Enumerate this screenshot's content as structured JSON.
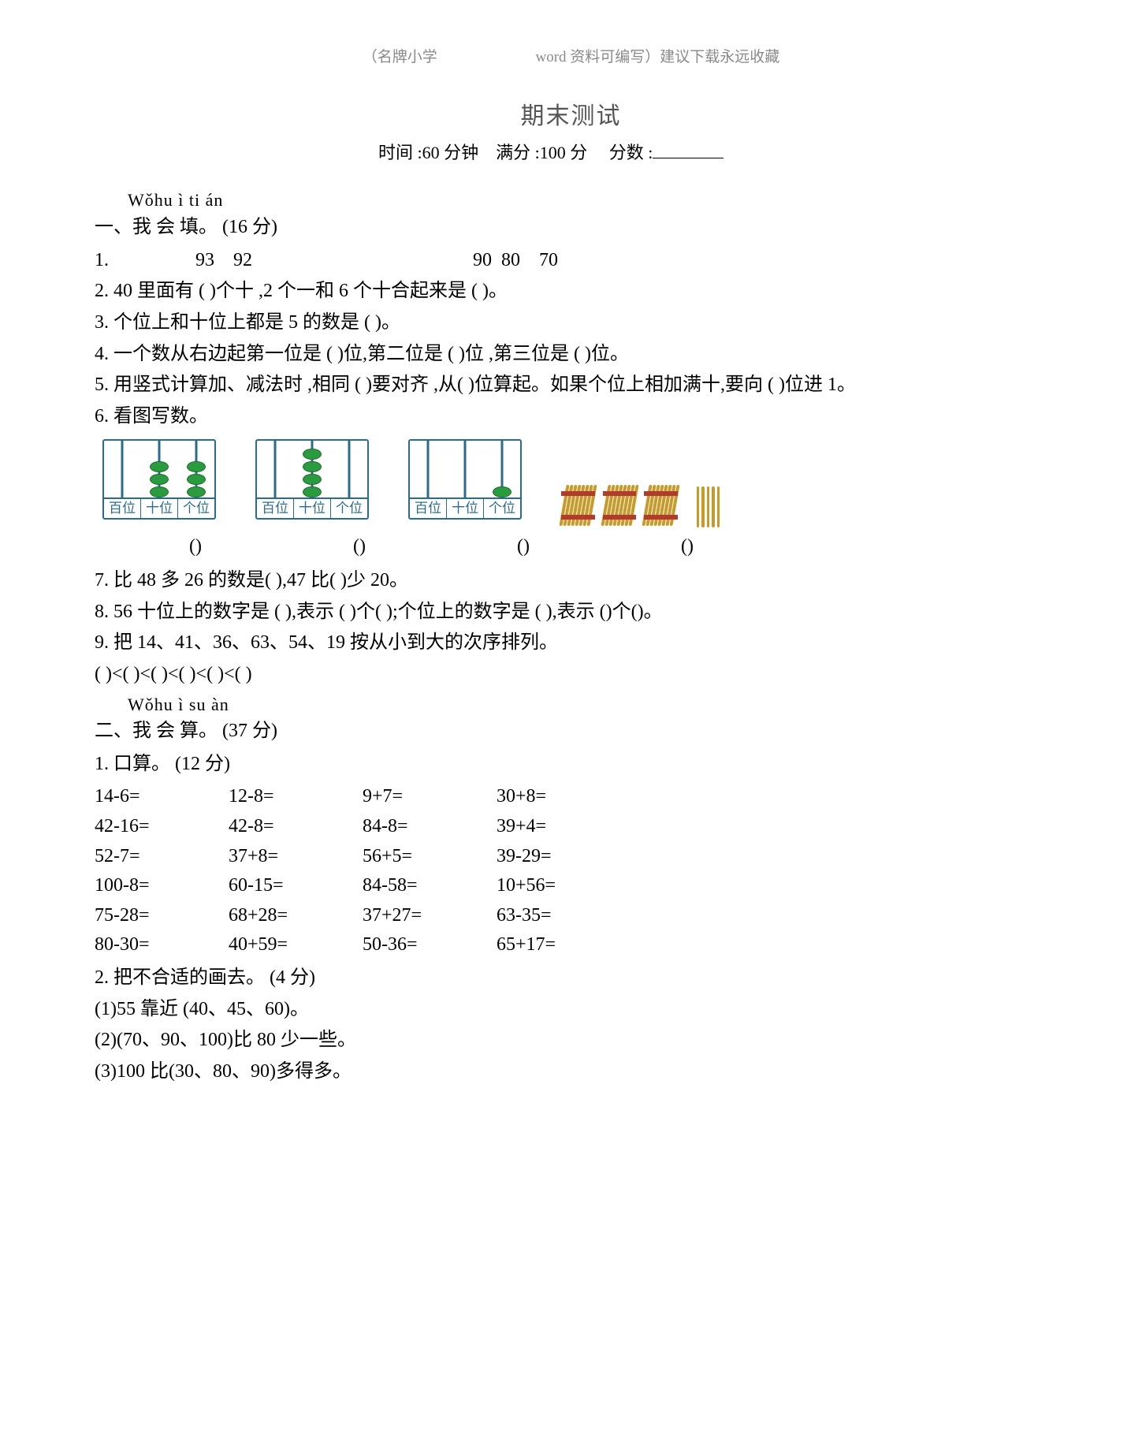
{
  "header": {
    "left": "（名牌小学",
    "right": "word 资料可编写）建议下载永远收藏"
  },
  "title": "期末测试",
  "meta": {
    "time_label": "时间 :60 分钟",
    "full_label": "满分 :100 分",
    "score_label": "分数 :"
  },
  "sec1": {
    "pinyin": "Wǒhu ì ti     án",
    "head": "一、我  会  填。 (16 分)",
    "q1_label": "1.",
    "q1_seq_a": "93    92",
    "q1_seq_b": "90  80    70",
    "q2": "2. 40  里面有 (          )个十 ,2 个一和 6 个十合起来是 (       )。",
    "q3": "3.   个位上和十位上都是  5 的数是 (          )。",
    "q4": "4.   一个数从右边起第一位是  (          )位,第二位是 (      )位 ,第三位是 (        )位。",
    "q5": "5.   用竖式计算加、减法时  ,相同 (        )要对齐 ,从(       )位算起。如果个位上相加满十,要向 (       )位进 1。",
    "q6": "6.   看图写数。",
    "abacus_labels": [
      "百位",
      "十位",
      "个位"
    ],
    "abacus_colors": {
      "frame": "#2b6c8e",
      "bead": "#2b9b3f",
      "bead_border": "#1f6b2b"
    },
    "abacus_values": [
      {
        "h": 0,
        "t": 3,
        "o": 3
      },
      {
        "h": 0,
        "t": 4,
        "o": 0
      },
      {
        "h": 0,
        "t": 0,
        "o": 1
      }
    ],
    "sticks_colors": {
      "stick": "#c79a2a",
      "band": "#b53a2e"
    },
    "paren": "()",
    "q7": "7.    比 48 多 26 的数是(      ),47 比(         )少 20。",
    "q8": "8.   56 十位上的数字是 (       ),表示 (       )个(          );个位上的数字是 (       ),表示 ()个()。",
    "q9": "9.   把 14、41、36、63、54、19 按从小到大的次序排列。",
    "q9_ans": "(       )<(       )<(       )<(       )<(       )<(        )"
  },
  "sec2": {
    "pinyin": "Wǒhu ì su àn",
    "head": "二、我  会  算。 (37 分)",
    "sub1": "1.   口算。 (12 分)",
    "calc": [
      [
        "14-6=",
        "12-8=",
        "9+7=",
        "30+8="
      ],
      [
        "42-16=",
        "42-8=",
        "84-8=",
        "39+4="
      ],
      [
        "52-7=",
        "37+8=",
        "56+5=",
        "39-29="
      ],
      [
        "100-8=",
        "60-15=",
        "84-58=",
        "10+56="
      ],
      [
        "75-28=",
        "68+28=",
        "37+27=",
        "63-35="
      ],
      [
        "80-30=",
        "40+59=",
        "50-36=",
        "65+17="
      ]
    ],
    "sub2": "2.   把不合适的画去。 (4 分)",
    "sub2_1": "(1)55 靠近 (40、45、60)。",
    "sub2_2": "(2)(70、90、100)比 80 少一些。",
    "sub2_3": "(3)100 比(30、80、90)多得多。"
  }
}
